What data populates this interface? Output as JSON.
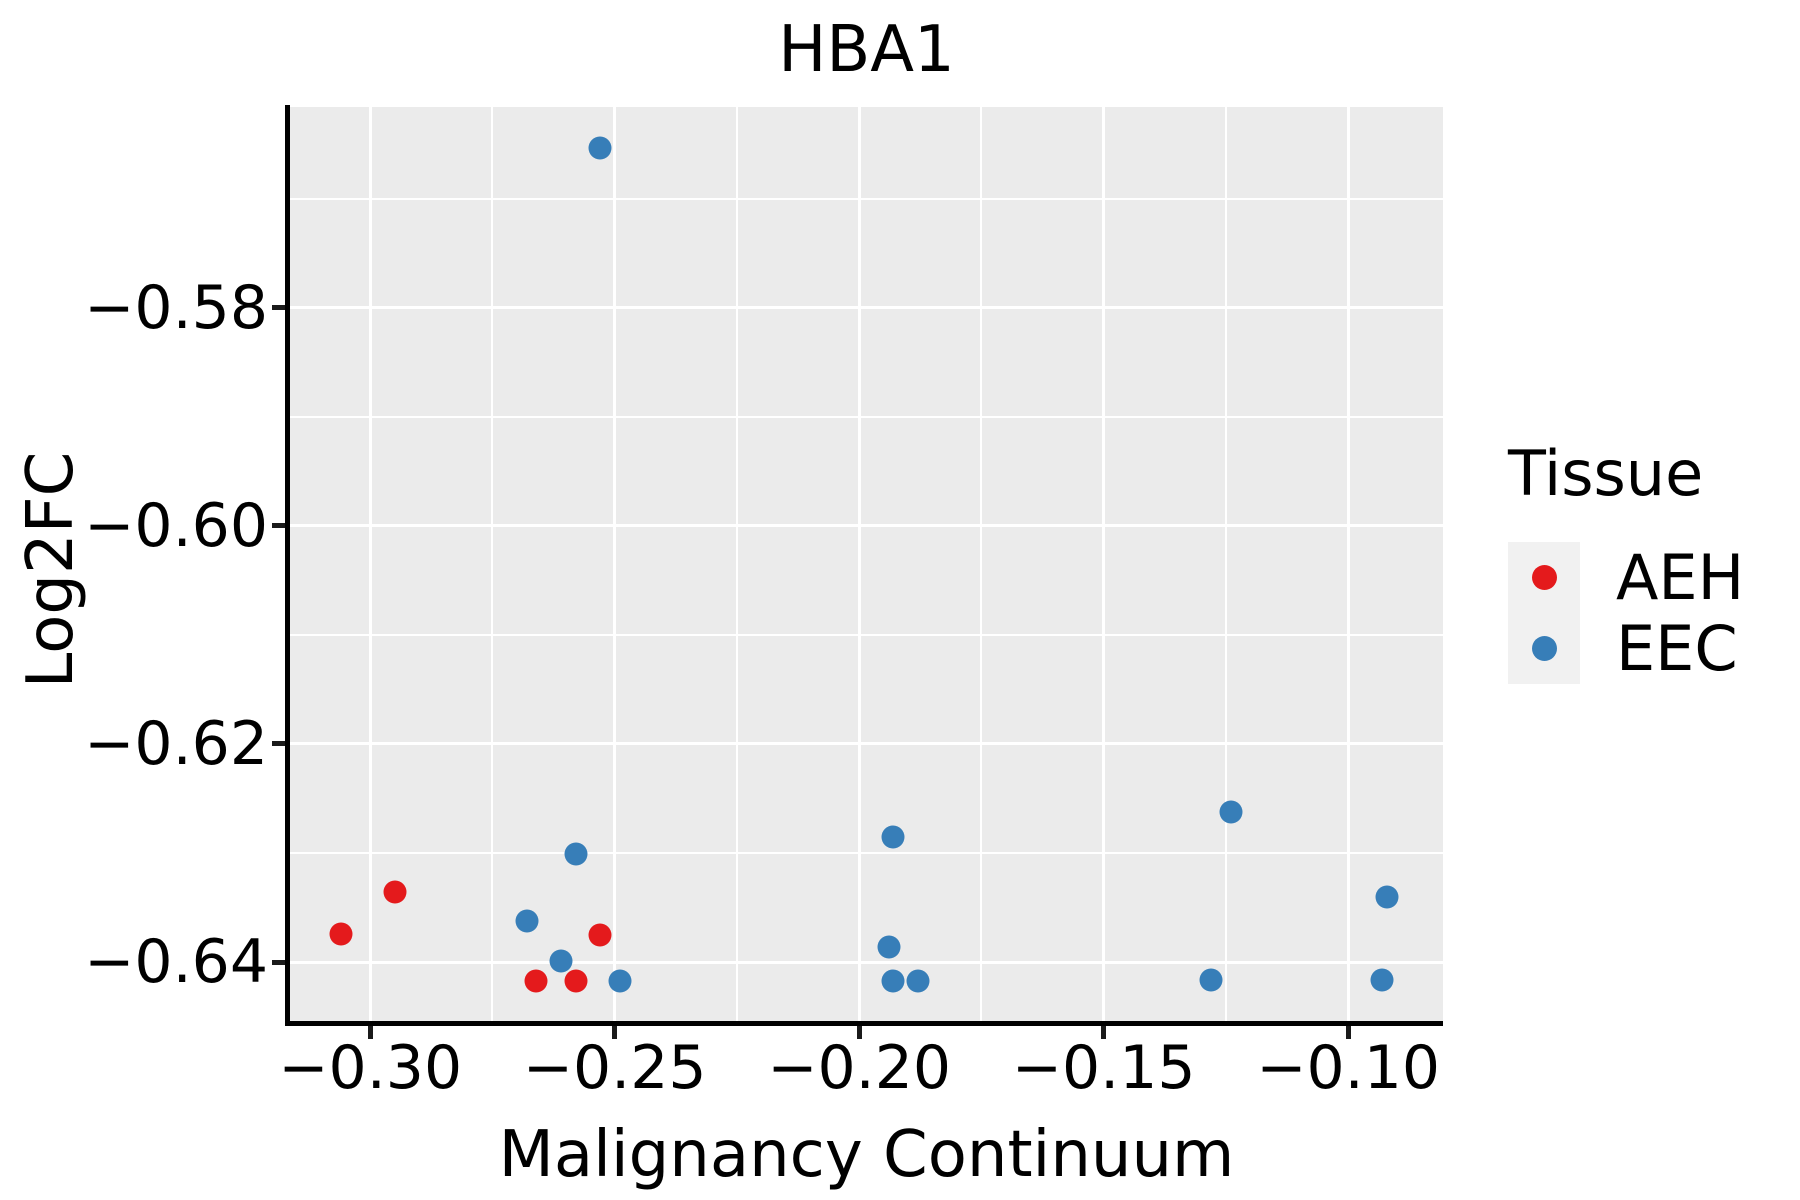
{
  "chart_data": {
    "type": "scatter",
    "title": "HBA1",
    "xlabel": "Malignancy Continuum",
    "ylabel": "Log2FC",
    "xlim": [
      -0.3164,
      -0.0806
    ],
    "ylim": [
      -0.6454,
      -0.5616
    ],
    "xticks": {
      "values": [
        -0.3,
        -0.25,
        -0.2,
        -0.15,
        -0.1
      ],
      "labels": [
        "−0.30",
        "−0.25",
        "−0.20",
        "−0.15",
        "−0.10"
      ]
    },
    "yticks": {
      "values": [
        -0.64,
        -0.62,
        -0.6,
        -0.58
      ],
      "labels": [
        "−0.64",
        "−0.62",
        "−0.60",
        "−0.58"
      ]
    },
    "grid": {
      "major": true,
      "minor": true,
      "color": "#FFFFFF"
    },
    "panel_background": "#EBEBEB",
    "legend": {
      "title": "Tissue",
      "position": "right"
    },
    "series": [
      {
        "name": "AEH",
        "color": "#E41A1C",
        "points": [
          [
            -0.306,
            -0.6374
          ],
          [
            -0.295,
            -0.6336
          ],
          [
            -0.266,
            -0.6417
          ],
          [
            -0.258,
            -0.6417
          ],
          [
            -0.253,
            -0.6375
          ]
        ]
      },
      {
        "name": "EEC",
        "color": "#377EB8",
        "points": [
          [
            -0.253,
            -0.5654
          ],
          [
            -0.268,
            -0.6362
          ],
          [
            -0.261,
            -0.6399
          ],
          [
            -0.258,
            -0.6301
          ],
          [
            -0.249,
            -0.6417
          ],
          [
            -0.194,
            -0.6386
          ],
          [
            -0.193,
            -0.6285
          ],
          [
            -0.193,
            -0.6417
          ],
          [
            -0.188,
            -0.6417
          ],
          [
            -0.128,
            -0.6416
          ],
          [
            -0.124,
            -0.6262
          ],
          [
            -0.093,
            -0.6416
          ],
          [
            -0.092,
            -0.634
          ]
        ]
      }
    ]
  }
}
